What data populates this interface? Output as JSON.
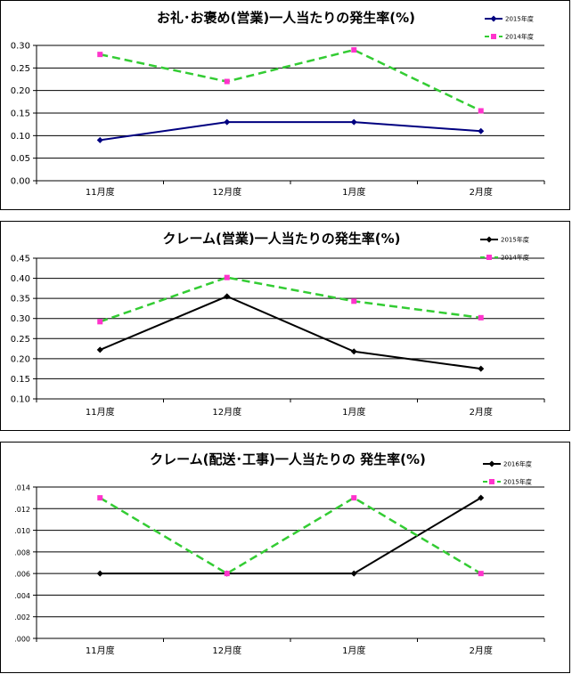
{
  "colors": {
    "blue": "#000080",
    "black": "#000000",
    "green": "#33cc33",
    "magenta": "#ff33cc"
  },
  "chart_data": [
    {
      "type": "line",
      "title": "お礼･お褒め(営業)一人当たりの発生率(%)",
      "categories": [
        "11月度",
        "12月度",
        "1月度",
        "2月度"
      ],
      "ylim": [
        0,
        0.3
      ],
      "yticks": [
        "0.00",
        "0.05",
        "0.10",
        "0.15",
        "0.20",
        "0.25",
        "0.30"
      ],
      "ytick_values": [
        0,
        0.05,
        0.1,
        0.15,
        0.2,
        0.25,
        0.3
      ],
      "grid": true,
      "legend_position": "top-right",
      "series": [
        {
          "name": "2015年度",
          "values": [
            0.09,
            0.13,
            0.13,
            0.11
          ],
          "color": "#000080",
          "style": "solid",
          "marker": "diamond"
        },
        {
          "name": "2014年度",
          "values": [
            0.28,
            0.22,
            0.29,
            0.155
          ],
          "color": "#33cc33",
          "marker_color": "#ff33cc",
          "style": "dashed",
          "marker": "square"
        }
      ]
    },
    {
      "type": "line",
      "title": "クレーム(営業)一人当たりの発生率(%)",
      "categories": [
        "11月度",
        "12月度",
        "1月度",
        "2月度"
      ],
      "ylim": [
        0.1,
        0.45
      ],
      "yticks": [
        "0.10",
        "0.15",
        "0.20",
        "0.25",
        "0.30",
        "0.35",
        "0.40",
        "0.45"
      ],
      "ytick_values": [
        0.1,
        0.15,
        0.2,
        0.25,
        0.3,
        0.35,
        0.4,
        0.45
      ],
      "grid": true,
      "legend_position": "top-right",
      "series": [
        {
          "name": "2015年度",
          "values": [
            0.222,
            0.355,
            0.218,
            0.175
          ],
          "color": "#000000",
          "style": "solid",
          "marker": "diamond"
        },
        {
          "name": "2014年度",
          "values": [
            0.292,
            0.402,
            0.343,
            0.302
          ],
          "color": "#33cc33",
          "marker_color": "#ff33cc",
          "style": "dashed",
          "marker": "square"
        }
      ]
    },
    {
      "type": "line",
      "title": "クレーム(配送･工事)一人当たりの 発生率(%)",
      "categories": [
        "11月度",
        "12月度",
        "1月度",
        "2月度"
      ],
      "ylim": [
        0,
        0.014
      ],
      "yticks": [
        ".000",
        ".002",
        ".004",
        ".006",
        ".008",
        ".010",
        ".012",
        ".014"
      ],
      "ytick_values": [
        0,
        0.002,
        0.004,
        0.006,
        0.008,
        0.01,
        0.012,
        0.014
      ],
      "grid": true,
      "legend_position": "top-right",
      "series": [
        {
          "name": "2016年度",
          "values": [
            0.006,
            0.006,
            0.006,
            0.013
          ],
          "color": "#000000",
          "style": "solid",
          "marker": "diamond"
        },
        {
          "name": "2015年度",
          "values": [
            0.013,
            0.006,
            0.013,
            0.006
          ],
          "color": "#33cc33",
          "marker_color": "#ff33cc",
          "style": "dashed",
          "marker": "square"
        }
      ]
    }
  ]
}
